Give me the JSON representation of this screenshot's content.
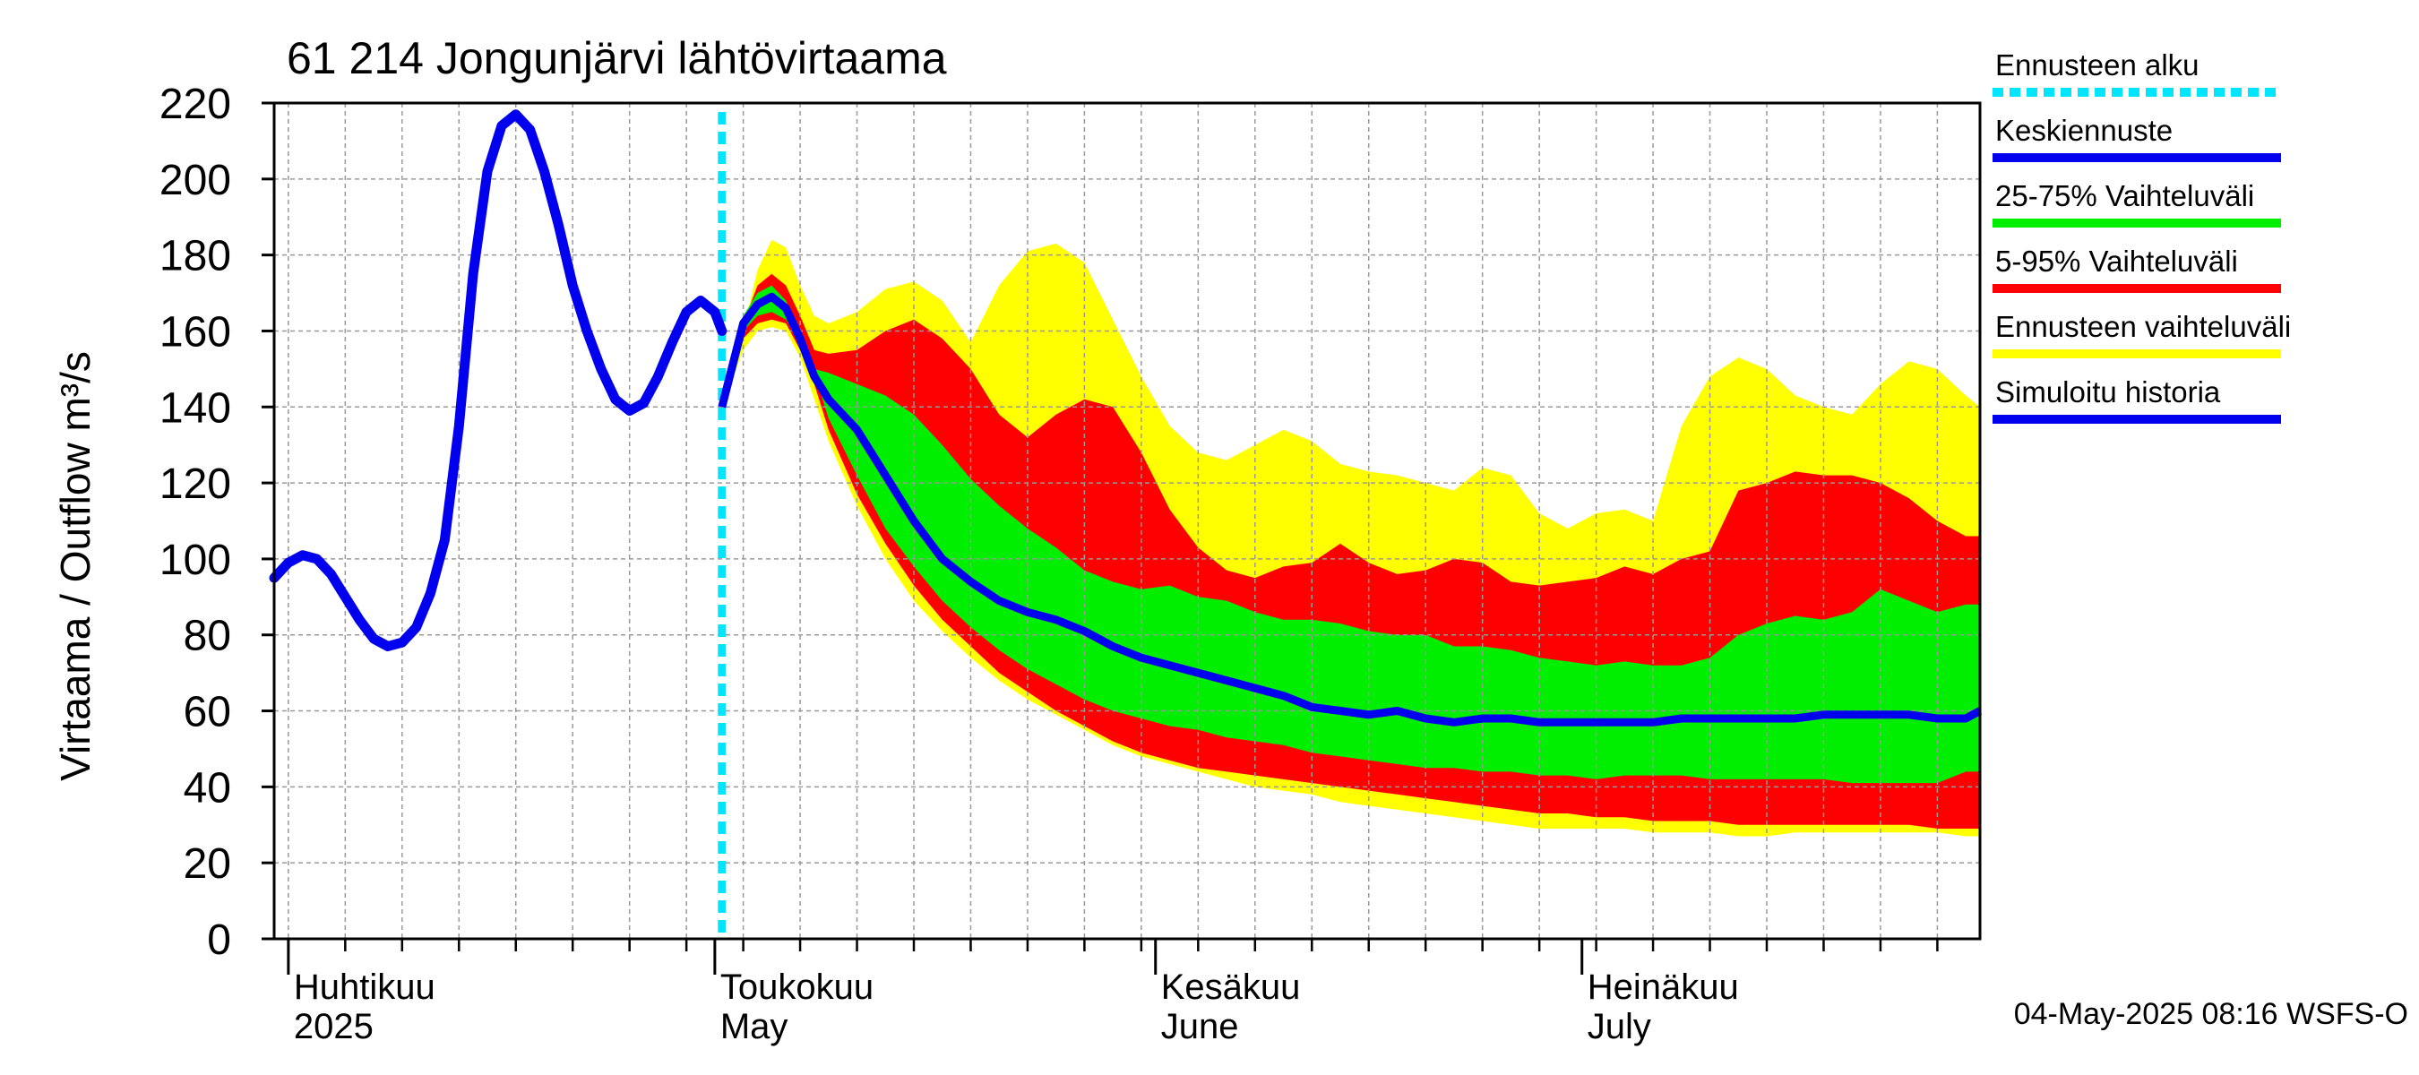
{
  "title": "61 214 Jongunjärvi lähtövirtaama",
  "ylabel": "Virtaama / Outflow    m³/s",
  "footer": "04-May-2025 08:16 WSFS-O",
  "colors": {
    "forecast_start": "#00e5ff",
    "mean": "#0000ee",
    "p25_75": "#00ee00",
    "p5_95": "#ff0000",
    "full": "#ffff00",
    "history": "#0000ee",
    "grid": "#999999"
  },
  "legend": [
    {
      "label": "Ennusteen alku",
      "style": "dashed",
      "color": "#00e5ff"
    },
    {
      "label": "Keskiennuste",
      "style": "line",
      "color": "#0000ee"
    },
    {
      "label": "25-75% Vaihteluväli",
      "style": "line",
      "color": "#00ee00"
    },
    {
      "label": "5-95% Vaihteluväli",
      "style": "line",
      "color": "#ff0000"
    },
    {
      "label": "Ennusteen vaihteluväli",
      "style": "line",
      "color": "#ffff00"
    },
    {
      "label": "Simuloitu historia",
      "style": "line",
      "color": "#0000ee"
    }
  ],
  "x_month_labels": [
    {
      "day": 0,
      "line1": "Huhtikuu",
      "line2": "2025"
    },
    {
      "day": 30,
      "line1": "Toukokuu",
      "line2": "May"
    },
    {
      "day": 61,
      "line1": "Kesäkuu",
      "line2": "June"
    },
    {
      "day": 91,
      "line1": "Heinäkuu",
      "line2": "July"
    }
  ],
  "chart_data": {
    "type": "area",
    "title": "61 214 Jongunjärvi lähtövirtaama",
    "ylabel": "Virtaama / Outflow    m³/s",
    "xlabel": "",
    "x_unit": "days since 2025-04-01",
    "xlim": [
      -1,
      119
    ],
    "ylim": [
      0,
      220
    ],
    "yticks": [
      0,
      20,
      40,
      60,
      80,
      100,
      120,
      140,
      160,
      180,
      200,
      220
    ],
    "grid": true,
    "legend_position": "right",
    "forecast_start_day": 30.5,
    "history": {
      "name": "Simuloitu historia",
      "x": [
        -1,
        0,
        1,
        2,
        3,
        4,
        5,
        6,
        7,
        8,
        9,
        10,
        11,
        12,
        13,
        14,
        15,
        16,
        17,
        18,
        19,
        20,
        21,
        22,
        23,
        24,
        25,
        26,
        27,
        28,
        29,
        30,
        30.5
      ],
      "y": [
        95,
        99,
        101,
        100,
        96,
        90,
        84,
        79,
        77,
        78,
        82,
        91,
        105,
        135,
        175,
        202,
        214,
        217,
        213,
        202,
        188,
        172,
        160,
        150,
        142,
        139,
        141,
        148,
        157,
        165,
        168,
        165,
        160
      ]
    },
    "forecast_x": [
      30.5,
      32,
      33,
      34,
      35,
      36,
      37,
      38,
      40,
      42,
      44,
      46,
      48,
      50,
      52,
      54,
      56,
      58,
      60,
      62,
      64,
      66,
      68,
      70,
      72,
      74,
      76,
      78,
      80,
      82,
      84,
      86,
      88,
      90,
      92,
      94,
      96,
      98,
      100,
      102,
      104,
      106,
      108,
      110,
      112,
      114,
      116,
      118,
      119
    ],
    "series": [
      {
        "name": "Ennusteen vaihteluväli",
        "kind": "band",
        "upper": [
          140,
          160,
          176,
          184,
          182,
          172,
          164,
          162,
          165,
          171,
          173,
          168,
          157,
          172,
          181,
          183,
          178,
          163,
          148,
          135,
          128,
          126,
          130,
          134,
          131,
          125,
          123,
          122,
          120,
          118,
          124,
          122,
          112,
          108,
          112,
          113,
          110,
          135,
          148,
          153,
          150,
          143,
          140,
          138,
          146,
          152,
          150,
          143,
          140
        ],
        "lower": [
          140,
          155,
          160,
          161,
          160,
          153,
          142,
          131,
          114,
          100,
          89,
          81,
          74,
          68,
          63,
          59,
          55,
          51,
          48,
          46,
          44,
          42,
          40,
          39,
          38,
          36,
          35,
          34,
          33,
          32,
          31,
          30,
          29,
          29,
          29,
          29,
          28,
          28,
          28,
          27,
          27,
          28,
          28,
          28,
          28,
          28,
          28,
          27,
          27
        ]
      },
      {
        "name": "5-95% Vaihteluväli",
        "kind": "band",
        "upper": [
          140,
          162,
          172,
          175,
          172,
          164,
          155,
          154,
          155,
          160,
          163,
          158,
          150,
          138,
          132,
          138,
          142,
          140,
          128,
          113,
          103,
          97,
          95,
          98,
          99,
          104,
          99,
          96,
          97,
          100,
          99,
          94,
          93,
          94,
          95,
          98,
          96,
          100,
          102,
          118,
          120,
          123,
          122,
          122,
          120,
          116,
          110,
          106,
          106
        ],
        "lower": [
          140,
          158,
          162,
          163,
          162,
          155,
          146,
          134,
          117,
          104,
          93,
          84,
          77,
          70,
          65,
          60,
          56,
          52,
          49,
          47,
          45,
          44,
          43,
          42,
          41,
          40,
          39,
          38,
          37,
          36,
          35,
          34,
          33,
          33,
          32,
          32,
          31,
          31,
          31,
          30,
          30,
          30,
          30,
          30,
          30,
          30,
          29,
          29,
          29
        ]
      },
      {
        "name": "25-75% Vaihteluväli",
        "kind": "band",
        "upper": [
          140,
          164,
          170,
          172,
          168,
          159,
          150,
          149,
          146,
          143,
          138,
          130,
          121,
          114,
          108,
          103,
          97,
          94,
          92,
          93,
          90,
          89,
          86,
          84,
          84,
          83,
          81,
          80,
          80,
          77,
          77,
          76,
          74,
          73,
          72,
          73,
          72,
          72,
          74,
          80,
          83,
          85,
          84,
          86,
          92,
          89,
          86,
          88,
          88
        ],
        "lower": [
          140,
          160,
          164,
          165,
          163,
          157,
          149,
          137,
          122,
          108,
          98,
          89,
          82,
          76,
          71,
          67,
          63,
          60,
          58,
          56,
          55,
          53,
          52,
          51,
          49,
          48,
          47,
          46,
          45,
          45,
          44,
          44,
          43,
          43,
          42,
          43,
          43,
          43,
          42,
          42,
          42,
          42,
          42,
          41,
          41,
          41,
          41,
          44,
          44
        ]
      },
      {
        "name": "Keskiennuste",
        "kind": "line",
        "values": [
          140,
          162,
          167,
          169,
          166,
          158,
          148,
          142,
          134,
          122,
          110,
          100,
          94,
          89,
          86,
          84,
          81,
          77,
          74,
          72,
          70,
          68,
          66,
          64,
          61,
          60,
          59,
          60,
          58,
          57,
          58,
          58,
          57,
          57,
          57,
          57,
          57,
          58,
          58,
          58,
          58,
          58,
          59,
          59,
          59,
          59,
          58,
          58,
          60
        ]
      }
    ]
  }
}
